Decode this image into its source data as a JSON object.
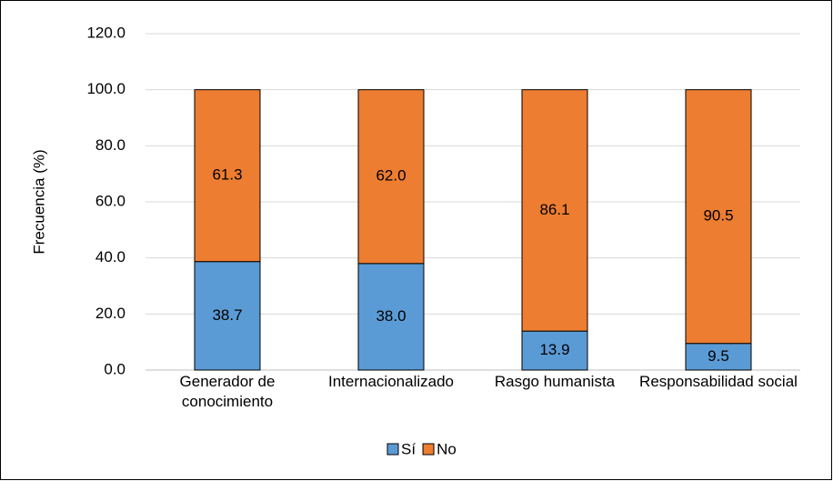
{
  "chart_data": {
    "type": "stacked_bar",
    "y_label": "Frecuencia (%)",
    "categories": [
      "Generador de conocimiento",
      "Internacionalizado",
      "Rasgo humanista",
      "Responsabilidad social"
    ],
    "series": [
      {
        "name": "Sí",
        "color": "#5b9bd5",
        "values": [
          38.7,
          38.0,
          13.9,
          9.5
        ],
        "value_labels": [
          "38.7",
          "38.0",
          "13.9",
          "9.5"
        ]
      },
      {
        "name": "No",
        "color": "#ed7d31",
        "values": [
          61.3,
          62.0,
          86.1,
          90.5
        ],
        "value_labels": [
          "61.3",
          "62.0",
          "86.1",
          "90.5"
        ]
      }
    ],
    "ylim": [
      0,
      120
    ],
    "yticks": [
      {
        "value": 0,
        "label": "0.0"
      },
      {
        "value": 20,
        "label": "20.0"
      },
      {
        "value": 40,
        "label": "40.0"
      },
      {
        "value": 60,
        "label": "60.0"
      },
      {
        "value": 80,
        "label": "80.0"
      },
      {
        "value": 100,
        "label": "100.0"
      },
      {
        "value": 120,
        "label": "120.0"
      }
    ],
    "grid": true,
    "legend": "bottom"
  }
}
